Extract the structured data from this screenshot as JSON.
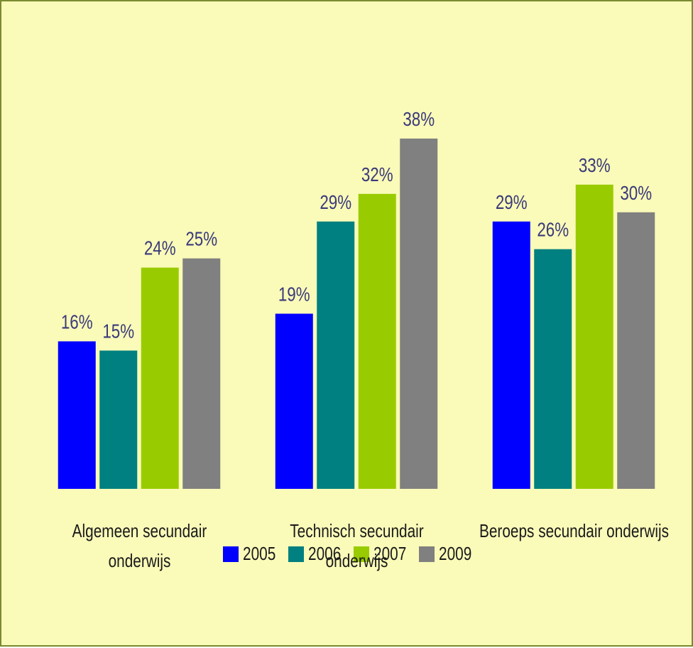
{
  "chart_data": {
    "type": "bar",
    "categories": [
      "Algemeen secundair onderwijs",
      "Technisch secundair onderwijs",
      "Beroeps secundair onderwijs"
    ],
    "series": [
      {
        "name": "2005",
        "color": "#0000ff",
        "values": [
          16,
          19,
          29
        ],
        "value_labels": [
          "16%",
          "19%",
          "29%"
        ]
      },
      {
        "name": "2006",
        "color": "#008080",
        "values": [
          15,
          29,
          26
        ],
        "value_labels": [
          "15%",
          "29%",
          "26%"
        ]
      },
      {
        "name": "2007",
        "color": "#99cc00",
        "values": [
          24,
          32,
          33
        ],
        "value_labels": [
          "24%",
          "32%",
          "33%"
        ]
      },
      {
        "name": "2009",
        "color": "#808080",
        "values": [
          25,
          38,
          30
        ],
        "value_labels": [
          "25%",
          "38%",
          "30%"
        ]
      }
    ],
    "legend": "bottom"
  }
}
